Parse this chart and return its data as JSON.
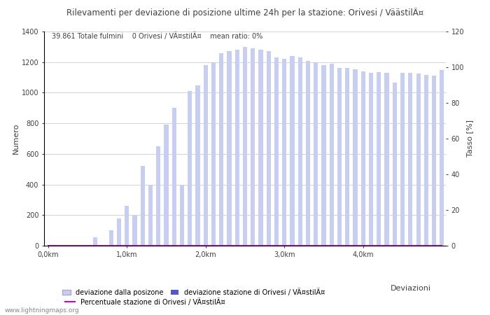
{
  "title": "Rilevamenti per deviazione di posizione ultime 24h per la stazione: Orivesi / VäästilÄ¤",
  "title_text": "Rilevamenti per deviazione di posizione ultime 24h per la stazione: Orivesi / VÄ¤stilÄ¤",
  "subtitle": "39.861 Totale fulmini    0 Orivesi / VÄ¤stilÄ¤    mean ratio: 0%",
  "xlabel": "Deviazioni",
  "ylabel_left": "Numero",
  "ylabel_right": "Tasso [%]",
  "ylim_left": [
    0,
    1400
  ],
  "ylim_right": [
    0,
    120
  ],
  "xtick_labels": [
    "0,0km",
    "1,0km",
    "2,0km",
    "3,0km",
    "4,0km"
  ],
  "xtick_positions": [
    0,
    10,
    20,
    30,
    40
  ],
  "yticks_left": [
    0,
    200,
    400,
    600,
    800,
    1000,
    1200,
    1400
  ],
  "yticks_right": [
    0,
    20,
    40,
    60,
    80,
    100,
    120
  ],
  "bar_values": [
    0,
    0,
    0,
    0,
    0,
    0,
    55,
    0,
    100,
    180,
    260,
    200,
    520,
    400,
    650,
    790,
    900,
    400,
    1010,
    1050,
    1180,
    1200,
    1260,
    1270,
    1280,
    1300,
    1290,
    1280,
    1270,
    1230,
    1220,
    1240,
    1230,
    1210,
    1200,
    1180,
    1190,
    1160,
    1160,
    1155,
    1140,
    1130,
    1135,
    1130,
    1065,
    1130,
    1130,
    1125,
    1115,
    1110,
    1150
  ],
  "station_bar_values": [
    0,
    0,
    0,
    0,
    0,
    0,
    0,
    0,
    0,
    0,
    0,
    0,
    0,
    0,
    0,
    0,
    0,
    0,
    0,
    0,
    0,
    0,
    0,
    0,
    0,
    0,
    0,
    0,
    0,
    0,
    0,
    0,
    0,
    0,
    0,
    0,
    0,
    0,
    0,
    0,
    0,
    0,
    0,
    0,
    0,
    0,
    0,
    0,
    0,
    0,
    0
  ],
  "ratio_values": [
    0,
    0,
    0,
    0,
    0,
    0,
    0,
    0,
    0,
    0,
    0,
    0,
    0,
    0,
    0,
    0,
    0,
    0,
    0,
    0,
    0,
    0,
    0,
    0,
    0,
    0,
    0,
    0,
    0,
    0,
    0,
    0,
    0,
    0,
    0,
    0,
    0,
    0,
    0,
    0,
    0,
    0,
    0,
    0,
    0,
    0,
    0,
    0,
    0,
    0,
    0
  ],
  "bar_color_light": "#c8cef0",
  "bar_color_dark": "#5555cc",
  "line_color": "#cc00cc",
  "background_color": "#ffffff",
  "grid_color": "#cccccc",
  "text_color": "#404040",
  "watermark": "www.lightningmaps.org",
  "legend_label_light": "deviazione dalla posizone",
  "legend_label_dark": "deviazione stazione di Orivesi / VÄ¤stilÄ¤",
  "legend_label_line": "Percentuale stazione di Orivesi / VÄ¤stilÄ¤",
  "n_bars": 51,
  "bar_width": 0.55
}
